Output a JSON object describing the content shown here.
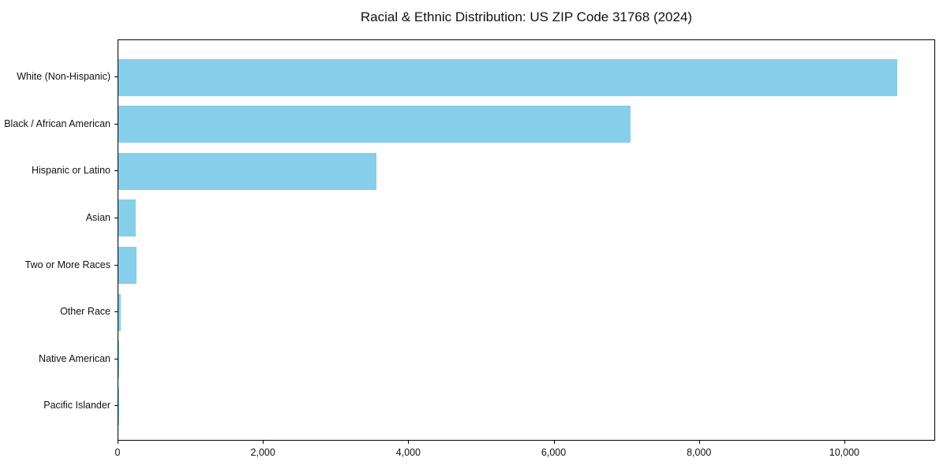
{
  "figure": {
    "background": "#ffffff",
    "border_color": "#000000",
    "text_color": "#111111"
  },
  "chart_data": {
    "type": "bar",
    "orientation": "horizontal",
    "title": "Racial & Ethnic Distribution: US ZIP Code 31768 (2024)",
    "categories": [
      "White (Non-Hispanic)",
      "Black / African American",
      "Hispanic or Latino",
      "Asian",
      "Two or More Races",
      "Other Race",
      "Native American",
      "Pacific Islander"
    ],
    "values": [
      10735,
      7060,
      3555,
      240,
      255,
      30,
      8,
      3
    ],
    "bar_color": "#87CEEB",
    "xlabel": "",
    "ylabel": "",
    "xlim": [
      0,
      11250
    ],
    "x_ticks": [
      0,
      2000,
      4000,
      6000,
      8000,
      10000
    ],
    "x_tick_labels": [
      "0",
      "2,000",
      "4,000",
      "6,000",
      "8,000",
      "10,000"
    ],
    "grid": false,
    "legend": null
  }
}
